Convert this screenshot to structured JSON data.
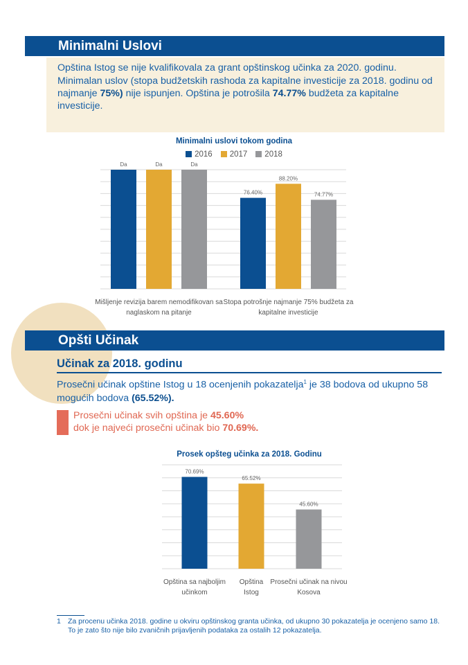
{
  "section1": {
    "title": "Minimalni Uslovi",
    "box_line1": "Opština Istog se nije kvalifikovala za grant opštinskog učinka za 2020. godinu.",
    "box_line2_pre": "Minimalan uslov (stopa budžetskih rashoda za kapitalne investicije za 2018. godinu od najmanje ",
    "box_line2_bold1": "75%)",
    "box_line2_mid": " nije ispunjen. Opština je potrošila ",
    "box_line2_bold2": "74.77%",
    "box_line2_post": " budžeta za kapitalne investicije."
  },
  "chart1_data": {
    "type": "bar",
    "title": "Minimalni uslovi tokom godina",
    "categories": [
      "Mišljenje revizija barem nemodifikovan sa naglaskom na pitanje",
      "Stopa potrošnje najmanje 75% budžeta za kapitalne investicije"
    ],
    "category_lines": [
      [
        "Mišljenje revizija barem nemodifikovan sa",
        "naglaskom na pitanje"
      ],
      [
        "Stopa potrošnje najmanje 75% budžeta za",
        "kapitalne investicije"
      ]
    ],
    "series": [
      {
        "name": "2016",
        "color": "#0b4f91",
        "values": [
          100,
          76.4
        ],
        "labels": [
          "Da",
          "76.40%"
        ]
      },
      {
        "name": "2017",
        "color": "#e3a833",
        "values": [
          100,
          88.2
        ],
        "labels": [
          "Da",
          "88.20%"
        ]
      },
      {
        "name": "2018",
        "color": "#96979a",
        "values": [
          100,
          74.77
        ],
        "labels": [
          "Da",
          "74.77%"
        ]
      }
    ],
    "ylim": [
      0,
      100
    ],
    "grid": true,
    "legend": "top"
  },
  "section2": {
    "title": "Opšti Učinak",
    "subheading": "Učinak za 2018. godinu",
    "para_pre": "Prosečni učinak opštine Istog u 18 ocenjenih pokazatelja",
    "para_sup": "1",
    "para_mid": " je 38 bodova od ukupno 58 mogućih bodova ",
    "para_bold": "(65.52%).",
    "hl_line1_pre": "Prosečni učinak svih opština je ",
    "hl_line1_bold": "45.60%",
    "hl_line2_pre": "dok je najveći prosečni učinak bio ",
    "hl_line2_bold": "70.69%."
  },
  "chart2_data": {
    "type": "bar",
    "title": "Prosek opšteg učinka za 2018. Godinu",
    "categories": [
      "Opština sa najboljim učinkom",
      "Opština Istog",
      "Prosečni učinak na nivou Kosova"
    ],
    "category_lines": [
      [
        "Opština sa najboljim",
        "učinkom"
      ],
      [
        "Opština",
        "Istog"
      ],
      [
        "Prosečni učinak na nivou",
        "Kosova"
      ]
    ],
    "values": [
      70.69,
      65.52,
      45.6
    ],
    "labels": [
      "70.69%",
      "65.52%",
      "45.60%"
    ],
    "colors": [
      "#0b4f91",
      "#e3a833",
      "#96979a"
    ],
    "ylim": [
      0,
      80
    ],
    "grid": true
  },
  "footnote": {
    "number": "1",
    "text": "Za procenu učinka 2018. godine u okviru opštinskog granta učinka, od ukupno 30 pokazatelja je ocenjeno samo 18. To je zato što nije bilo zvaničnih prijavljenih podataka za ostalih 12 pokazatelja."
  }
}
